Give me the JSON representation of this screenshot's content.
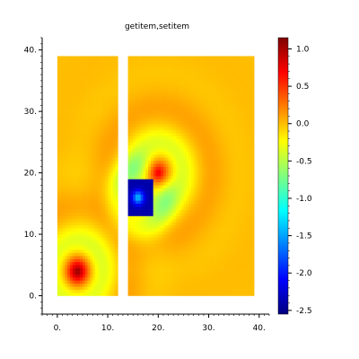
{
  "chart_data": {
    "type": "heatmap",
    "title": "getitem,setitem",
    "xlabel": "",
    "ylabel": "",
    "xlim": [
      -3,
      42
    ],
    "ylim": [
      -3,
      42
    ],
    "x_ticks": [
      {
        "value": 0,
        "label": "0."
      },
      {
        "value": 10,
        "label": "10."
      },
      {
        "value": 20,
        "label": "20."
      },
      {
        "value": 30,
        "label": "30."
      },
      {
        "value": 40,
        "label": "40."
      }
    ],
    "y_ticks": [
      {
        "value": 0,
        "label": "0."
      },
      {
        "value": 10,
        "label": "10."
      },
      {
        "value": 20,
        "label": "20."
      },
      {
        "value": 30,
        "label": "30."
      },
      {
        "value": 40,
        "label": "40."
      }
    ],
    "colorbar": {
      "colormap": "jet",
      "range": [
        -2.55,
        1.15
      ],
      "ticks": [
        {
          "value": 1.0,
          "label": "1.0"
        },
        {
          "value": 0.5,
          "label": "0.5"
        },
        {
          "value": 0.0,
          "label": "0.0"
        },
        {
          "value": -0.5,
          "label": "-0.5"
        },
        {
          "value": -1.0,
          "label": "-1.0"
        },
        {
          "value": -1.5,
          "label": "-1.5"
        },
        {
          "value": -2.0,
          "label": "-2.0"
        },
        {
          "value": -2.5,
          "label": "-2.5"
        }
      ]
    },
    "field": {
      "background_value": 0.0,
      "panels": [
        {
          "x_range": [
            0,
            12
          ],
          "y_range": [
            0,
            39
          ]
        },
        {
          "x_range": [
            14,
            39
          ],
          "y_range": [
            0,
            39
          ]
        }
      ],
      "sources": [
        {
          "x": 4,
          "y": 4,
          "peak": 1.1
        },
        {
          "x": 20,
          "y": 20,
          "peak": 1.1
        }
      ],
      "block": {
        "x_range": [
          14,
          19
        ],
        "y_range": [
          13,
          19
        ],
        "value": -2.4,
        "center": {
          "x": 16,
          "y": 16,
          "value": -1.4
        }
      }
    }
  }
}
